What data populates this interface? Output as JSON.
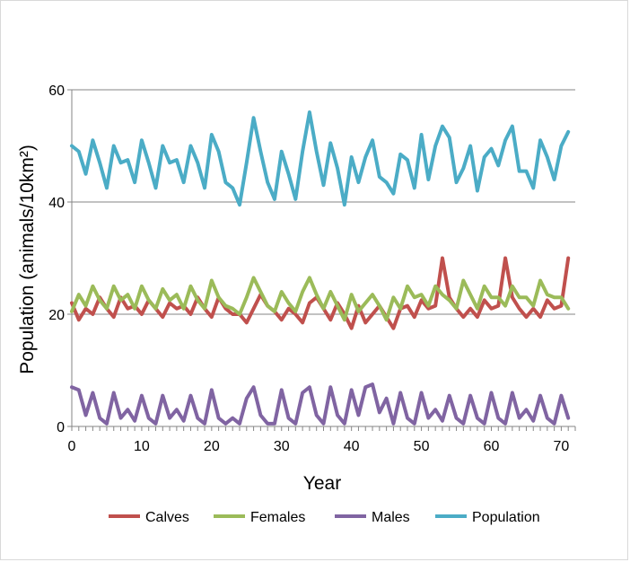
{
  "chart_data": {
    "type": "line",
    "xlabel": "Year",
    "ylabel": "Population (animals/10km²)",
    "xlim": [
      0,
      72
    ],
    "ylim": [
      0,
      60
    ],
    "xticks": [
      0,
      10,
      20,
      30,
      40,
      50,
      60,
      70
    ],
    "yticks": [
      0,
      20,
      40,
      60
    ],
    "grid": "horizontal",
    "legend_position": "bottom",
    "x": [
      0,
      1,
      2,
      3,
      4,
      5,
      6,
      7,
      8,
      9,
      10,
      11,
      12,
      13,
      14,
      15,
      16,
      17,
      18,
      19,
      20,
      21,
      22,
      23,
      24,
      25,
      26,
      27,
      28,
      29,
      30,
      31,
      32,
      33,
      34,
      35,
      36,
      37,
      38,
      39,
      40,
      41,
      42,
      43,
      44,
      45,
      46,
      47,
      48,
      49,
      50,
      51,
      52,
      53,
      54,
      55,
      56,
      57,
      58,
      59,
      60,
      61,
      62,
      63,
      64,
      65,
      66,
      67,
      68,
      69,
      70,
      71
    ],
    "series": [
      {
        "name": "Calves",
        "color": "#c0504d",
        "values": [
          22,
          19,
          21,
          20,
          23,
          21,
          19.5,
          23,
          21,
          21.5,
          20,
          22.5,
          21,
          19.5,
          22,
          21,
          21.5,
          20,
          23,
          21,
          19.5,
          23,
          21,
          20,
          20,
          18.5,
          21,
          23.5,
          21.5,
          20.5,
          19,
          21,
          20,
          18.5,
          22,
          23,
          21,
          19,
          22,
          20,
          17.5,
          21.5,
          18.5,
          20,
          21.5,
          19.5,
          17.5,
          21,
          21.5,
          19.5,
          22.5,
          21,
          21.5,
          30,
          23,
          21,
          19.5,
          21,
          19.5,
          22.5,
          21,
          21.5,
          30,
          23,
          21,
          19.5,
          21,
          19.5,
          22.5,
          21,
          21.5,
          30
        ]
      },
      {
        "name": "Females",
        "color": "#9bbb59",
        "values": [
          20.5,
          23.5,
          21.5,
          25,
          22.5,
          21,
          25,
          22.5,
          23.5,
          21,
          25,
          22.5,
          21,
          24.5,
          22.5,
          23.5,
          21,
          25,
          22.5,
          21,
          26,
          23,
          21.5,
          21,
          20,
          23,
          26.5,
          24,
          21.5,
          20.5,
          24,
          22,
          20.5,
          24,
          26.5,
          23.5,
          21,
          24,
          21.5,
          19,
          23.5,
          20.5,
          22,
          23.5,
          21.5,
          19,
          23,
          21,
          25,
          23,
          23.5,
          21.5,
          25,
          23.5,
          22.5,
          21,
          26,
          23.5,
          21,
          25,
          23,
          23,
          21.5,
          25,
          23,
          23,
          21.5,
          26,
          23.5,
          23,
          23,
          21
        ]
      },
      {
        "name": "Males",
        "color": "#8064a2",
        "values": [
          7,
          6.5,
          2,
          6,
          1.5,
          0.5,
          6,
          1.5,
          3,
          1,
          5.5,
          1.5,
          0.5,
          5.5,
          1.5,
          3,
          1,
          5.5,
          1.5,
          0.5,
          6.5,
          1.5,
          0.5,
          1.5,
          0.5,
          5,
          7,
          2,
          0.5,
          0.5,
          6.5,
          1.5,
          0.5,
          6,
          7,
          2,
          0.5,
          7,
          2,
          0.5,
          6.5,
          2,
          7,
          7.5,
          2.5,
          5,
          0.5,
          6,
          1.5,
          0.5,
          6,
          1.5,
          3,
          1,
          5.5,
          1.5,
          0.5,
          5.5,
          1.5,
          0.5,
          6,
          1.5,
          0.5,
          6,
          1.5,
          3,
          1,
          5.5,
          1.5,
          0.5,
          5.5,
          1.5
        ]
      },
      {
        "name": "Population",
        "color": "#4bacc6",
        "values": [
          50,
          49,
          45,
          51,
          47,
          42.5,
          50,
          47,
          47.5,
          43.5,
          51,
          47,
          42.5,
          50,
          47,
          47.5,
          43.5,
          50,
          47,
          42.5,
          52,
          49,
          43.5,
          42.5,
          39.5,
          47,
          55,
          49,
          43.5,
          40.5,
          49,
          45,
          40.5,
          49,
          56,
          49,
          43,
          50.5,
          46,
          39.5,
          48,
          43.5,
          48,
          51,
          44.5,
          43.5,
          41.5,
          48.5,
          47.5,
          42.5,
          52,
          44,
          50,
          53.5,
          51.5,
          43.5,
          46,
          50,
          42,
          48,
          49.5,
          46.5,
          51,
          53.5,
          45.5,
          45.5,
          42.5,
          51,
          48,
          44,
          50,
          52.5
        ]
      }
    ]
  }
}
